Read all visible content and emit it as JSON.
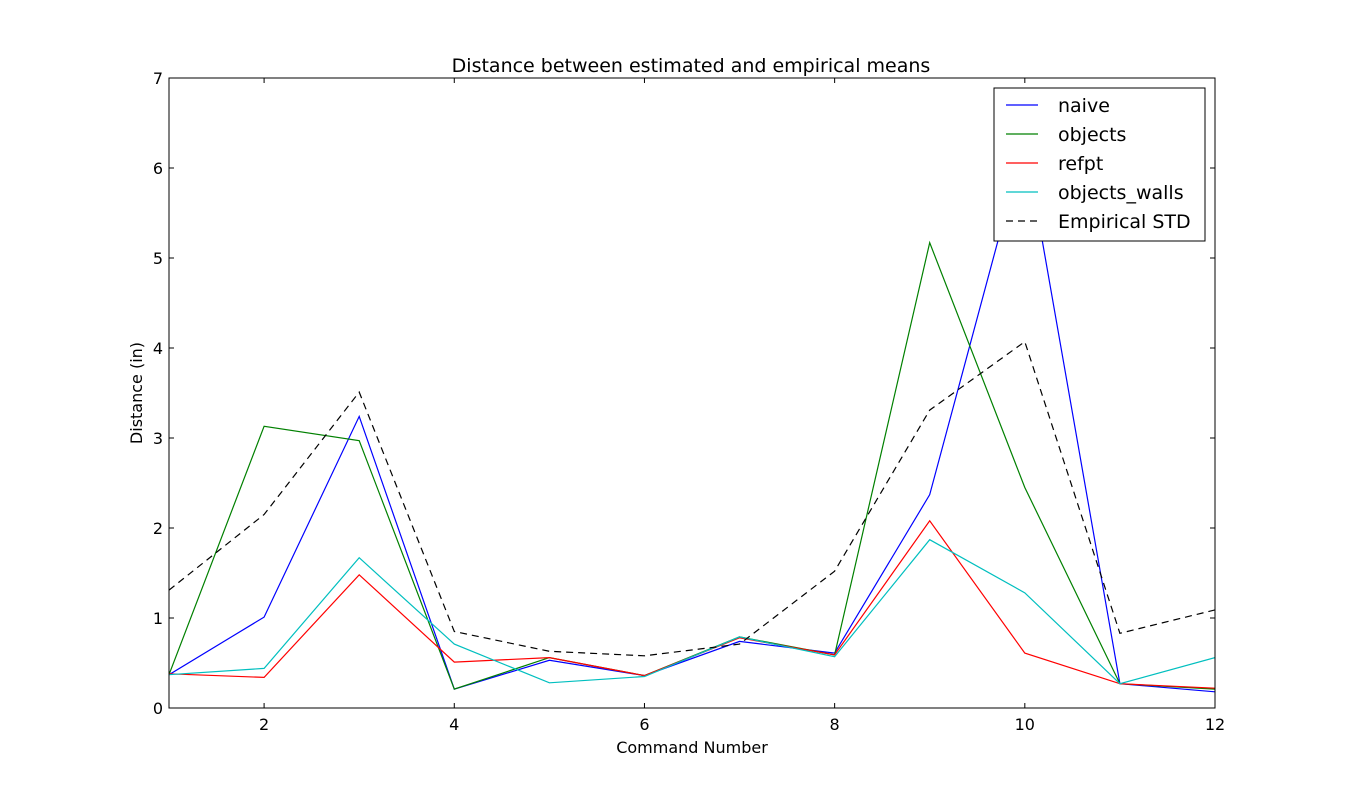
{
  "chart_data": {
    "type": "line",
    "title": "Distance between estimated and empirical means",
    "xlabel": "Command Number",
    "ylabel": "Distance (in)",
    "xlim": [
      1,
      12
    ],
    "ylim": [
      0,
      7
    ],
    "xticks": [
      2,
      4,
      6,
      8,
      10,
      12
    ],
    "yticks": [
      0,
      1,
      2,
      3,
      4,
      5,
      6,
      7
    ],
    "x": [
      1,
      2,
      3,
      4,
      5,
      6,
      7,
      8,
      9,
      10,
      11,
      12
    ],
    "grid": false,
    "legend_position": "top-right",
    "series": [
      {
        "name": "naive",
        "color": "#0000ff",
        "dash": "solid",
        "values": [
          0.37,
          1.01,
          3.24,
          0.21,
          0.53,
          0.36,
          0.74,
          0.61,
          2.37,
          6.3,
          0.27,
          0.18
        ]
      },
      {
        "name": "objects",
        "color": "#008000",
        "dash": "solid",
        "values": [
          0.37,
          3.13,
          2.97,
          0.21,
          0.56,
          0.36,
          0.79,
          0.59,
          5.17,
          2.45,
          0.27,
          0.21
        ]
      },
      {
        "name": "refpt",
        "color": "#ff0000",
        "dash": "solid",
        "values": [
          0.38,
          0.34,
          1.48,
          0.51,
          0.56,
          0.36,
          0.78,
          0.59,
          2.08,
          0.61,
          0.27,
          0.22
        ]
      },
      {
        "name": "objects_walls",
        "color": "#00bfbf",
        "dash": "solid",
        "values": [
          0.37,
          0.44,
          1.67,
          0.71,
          0.28,
          0.35,
          0.79,
          0.57,
          1.87,
          1.28,
          0.27,
          0.56
        ]
      },
      {
        "name": "Empirical STD",
        "color": "#000000",
        "dash": "dashed",
        "values": [
          1.31,
          2.15,
          3.51,
          0.85,
          0.63,
          0.58,
          0.71,
          1.52,
          3.31,
          4.07,
          0.83,
          1.09
        ]
      }
    ]
  }
}
